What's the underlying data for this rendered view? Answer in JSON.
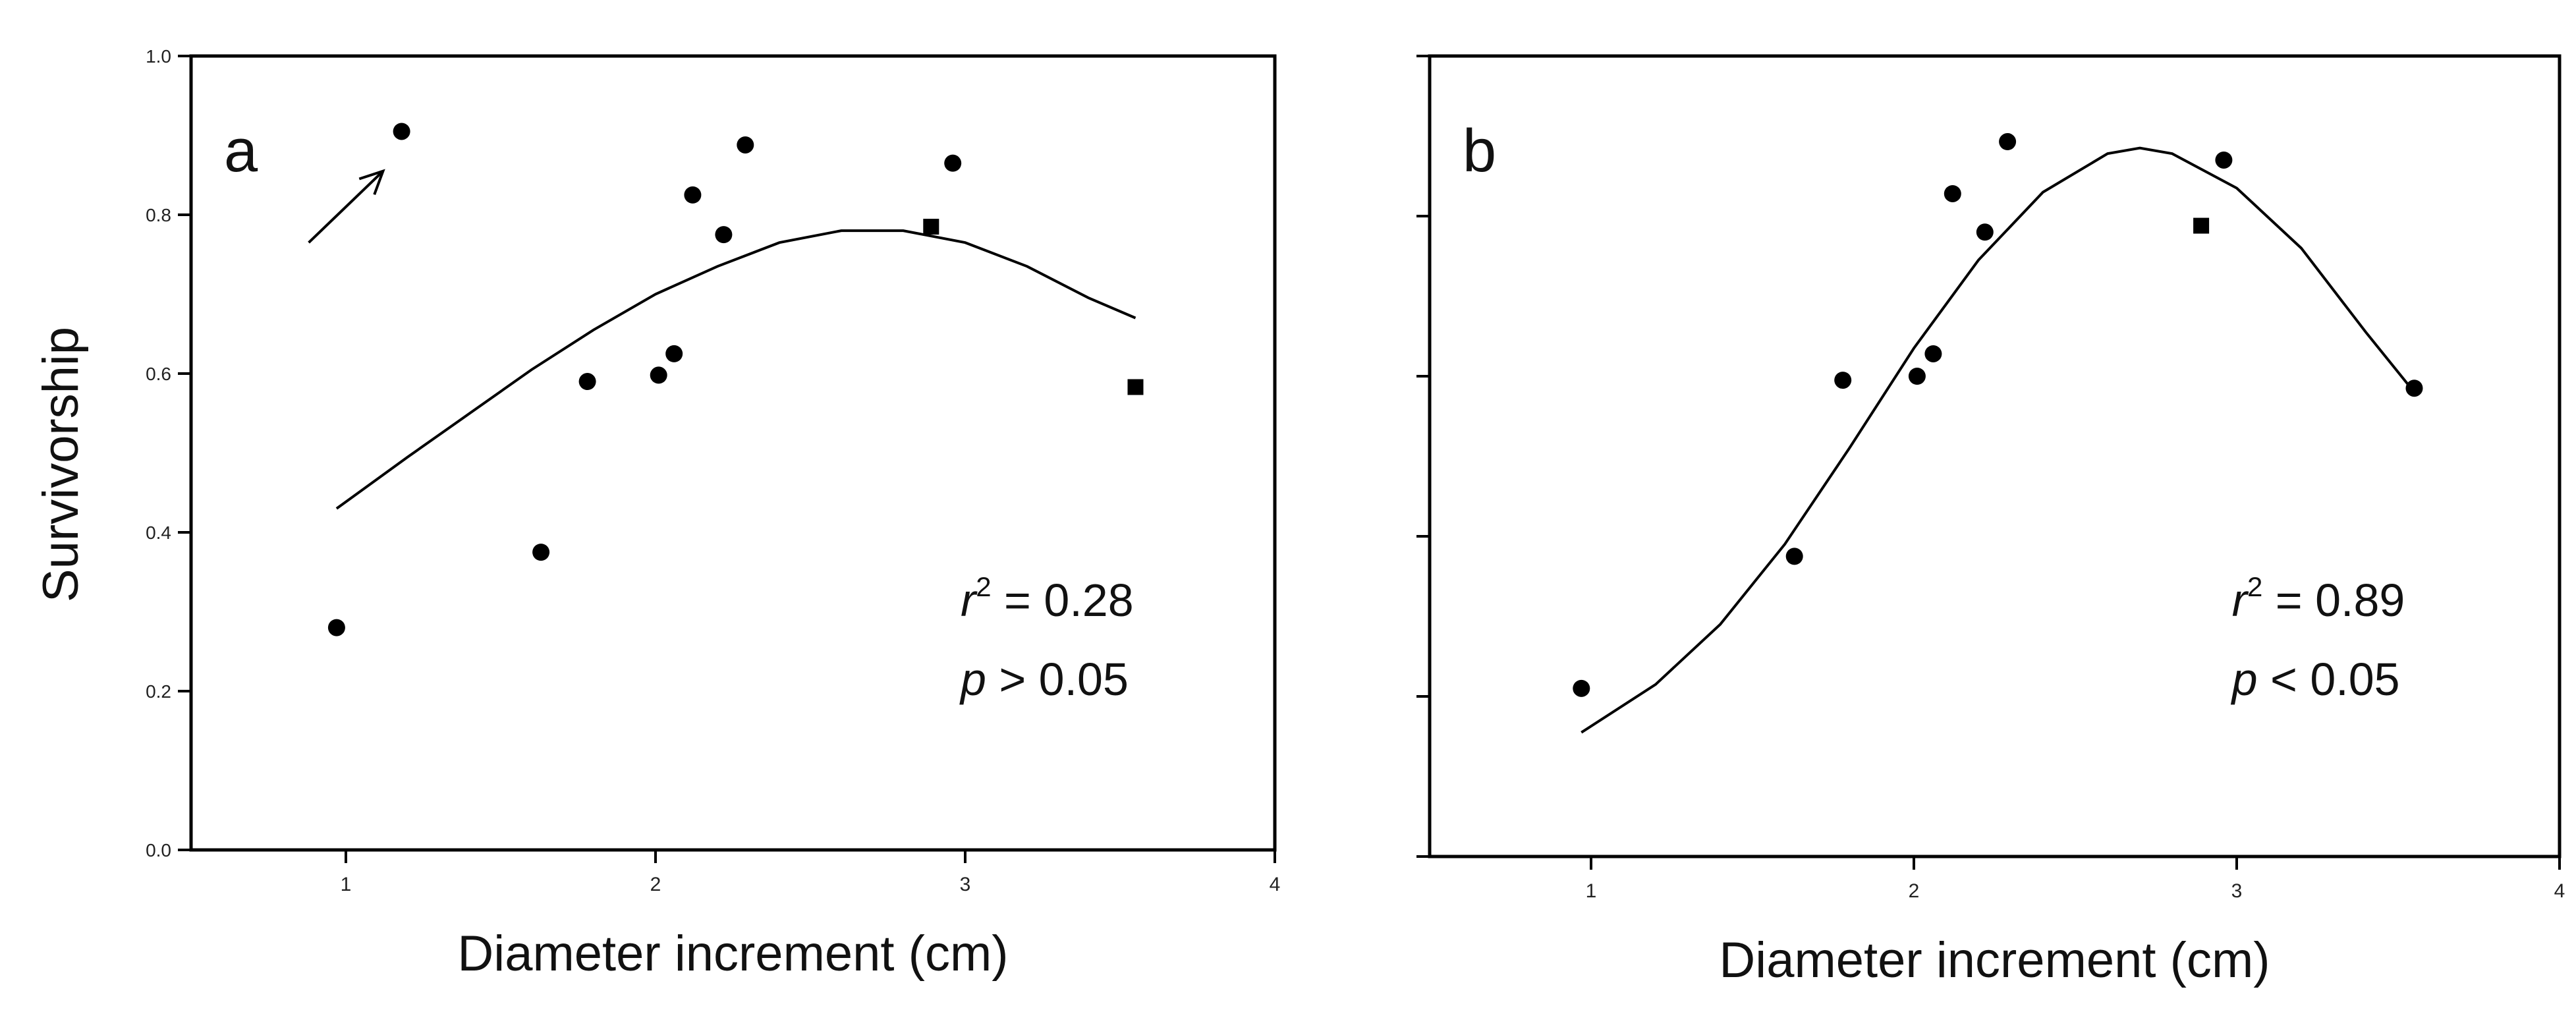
{
  "figure": {
    "ylabel": "Survivorship"
  },
  "chart_data": [
    {
      "type": "scatter",
      "panel_label": "a",
      "title": "",
      "xlabel": "Diameter increment (cm)",
      "ylabel": "Survivorship",
      "xlim": [
        0.5,
        4
      ],
      "ylim": [
        0.0,
        1.0
      ],
      "xticks": [
        "1",
        "2",
        "3",
        "4"
      ],
      "yticks": [
        "0.0",
        "0.2",
        "0.4",
        "0.6",
        "0.8",
        "1.0"
      ],
      "grid": false,
      "points": [
        {
          "x": 0.97,
          "y": 0.28,
          "marker": "circle"
        },
        {
          "x": 1.18,
          "y": 0.905,
          "marker": "circle"
        },
        {
          "x": 1.63,
          "y": 0.375,
          "marker": "circle"
        },
        {
          "x": 1.78,
          "y": 0.59,
          "marker": "circle"
        },
        {
          "x": 2.01,
          "y": 0.598,
          "marker": "circle"
        },
        {
          "x": 2.06,
          "y": 0.625,
          "marker": "circle"
        },
        {
          "x": 2.12,
          "y": 0.825,
          "marker": "circle"
        },
        {
          "x": 2.22,
          "y": 0.775,
          "marker": "circle"
        },
        {
          "x": 2.29,
          "y": 0.888,
          "marker": "circle"
        },
        {
          "x": 2.89,
          "y": 0.785,
          "marker": "square"
        },
        {
          "x": 2.96,
          "y": 0.865,
          "marker": "circle"
        },
        {
          "x": 3.55,
          "y": 0.583,
          "marker": "square"
        }
      ],
      "fit_line": {
        "type": "quadratic",
        "x": [
          0.97,
          1.2,
          1.4,
          1.6,
          1.8,
          2.0,
          2.2,
          2.4,
          2.6,
          2.8,
          3.0,
          3.2,
          3.4,
          3.55
        ],
        "y": [
          0.43,
          0.495,
          0.55,
          0.605,
          0.655,
          0.7,
          0.735,
          0.765,
          0.78,
          0.78,
          0.765,
          0.735,
          0.695,
          0.67
        ]
      },
      "arrow": {
        "from": [
          0.88,
          0.765
        ],
        "to": [
          1.12,
          0.855
        ]
      },
      "annotation": {
        "r2_symbol": "r",
        "r2_exp": "2",
        "r2_value": " = 0.28",
        "p_symbol": "p",
        "p_value": " > 0.05"
      }
    },
    {
      "type": "scatter",
      "panel_label": "b",
      "title": "",
      "xlabel": "Diameter increment (cm)",
      "ylabel": "",
      "xlim": [
        0.5,
        4
      ],
      "ylim": [
        0.0,
        1.0
      ],
      "xticks": [
        "1",
        "2",
        "3",
        "4"
      ],
      "yticks": [
        "",
        "",
        "",
        "",
        "",
        ""
      ],
      "grid": false,
      "points": [
        {
          "x": 0.97,
          "y": 0.21,
          "marker": "circle"
        },
        {
          "x": 1.63,
          "y": 0.375,
          "marker": "circle"
        },
        {
          "x": 1.78,
          "y": 0.595,
          "marker": "circle"
        },
        {
          "x": 2.01,
          "y": 0.6,
          "marker": "circle"
        },
        {
          "x": 2.06,
          "y": 0.628,
          "marker": "circle"
        },
        {
          "x": 2.12,
          "y": 0.828,
          "marker": "circle"
        },
        {
          "x": 2.22,
          "y": 0.78,
          "marker": "circle"
        },
        {
          "x": 2.29,
          "y": 0.893,
          "marker": "circle"
        },
        {
          "x": 2.89,
          "y": 0.788,
          "marker": "square"
        },
        {
          "x": 2.96,
          "y": 0.87,
          "marker": "circle"
        },
        {
          "x": 3.55,
          "y": 0.585,
          "marker": "circle"
        }
      ],
      "fit_line": {
        "type": "gaussian",
        "x": [
          0.97,
          1.2,
          1.4,
          1.6,
          1.8,
          2.0,
          2.2,
          2.4,
          2.6,
          2.7,
          2.8,
          3.0,
          3.2,
          3.4,
          3.55
        ],
        "y": [
          0.155,
          0.215,
          0.29,
          0.39,
          0.51,
          0.635,
          0.745,
          0.83,
          0.878,
          0.885,
          0.878,
          0.835,
          0.76,
          0.655,
          0.58
        ]
      },
      "annotation": {
        "r2_symbol": "r",
        "r2_exp": "2",
        "r2_value": " = 0.89",
        "p_symbol": "p",
        "p_value": " < 0.05"
      }
    }
  ]
}
